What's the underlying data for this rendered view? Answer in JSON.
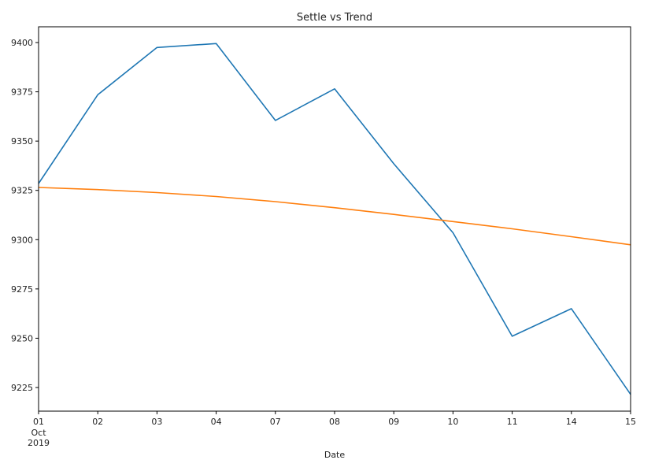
{
  "chart_data": {
    "type": "line",
    "title": "Settle vs Trend",
    "xlabel": "Date",
    "ylabel": "",
    "categories": [
      "01",
      "02",
      "03",
      "04",
      "07",
      "08",
      "09",
      "10",
      "11",
      "14",
      "15"
    ],
    "x_month_label": "Oct",
    "x_year_label": "2019",
    "x": [
      "2019-10-01",
      "2019-10-02",
      "2019-10-03",
      "2019-10-04",
      "2019-10-07",
      "2019-10-08",
      "2019-10-09",
      "2019-10-10",
      "2019-10-11",
      "2019-10-14",
      "2019-10-15"
    ],
    "ylim": [
      9213,
      9408
    ],
    "yticks": [
      9225,
      9250,
      9275,
      9300,
      9325,
      9350,
      9375,
      9400
    ],
    "grid": false,
    "legend": "none",
    "series": [
      {
        "color": "#1f77b4",
        "values": [
          9328.5,
          9373.5,
          9397.5,
          9399.5,
          9360.5,
          9376.5,
          9338.5,
          9303.5,
          9251,
          9265,
          9221.5
        ]
      },
      {
        "color": "#ff7f0e",
        "values": [
          9326.5,
          9325.4,
          9323.9,
          9321.9,
          9319.3,
          9316.2,
          9312.8,
          9309.2,
          9305.5,
          9301.5,
          9297.4
        ]
      }
    ]
  }
}
